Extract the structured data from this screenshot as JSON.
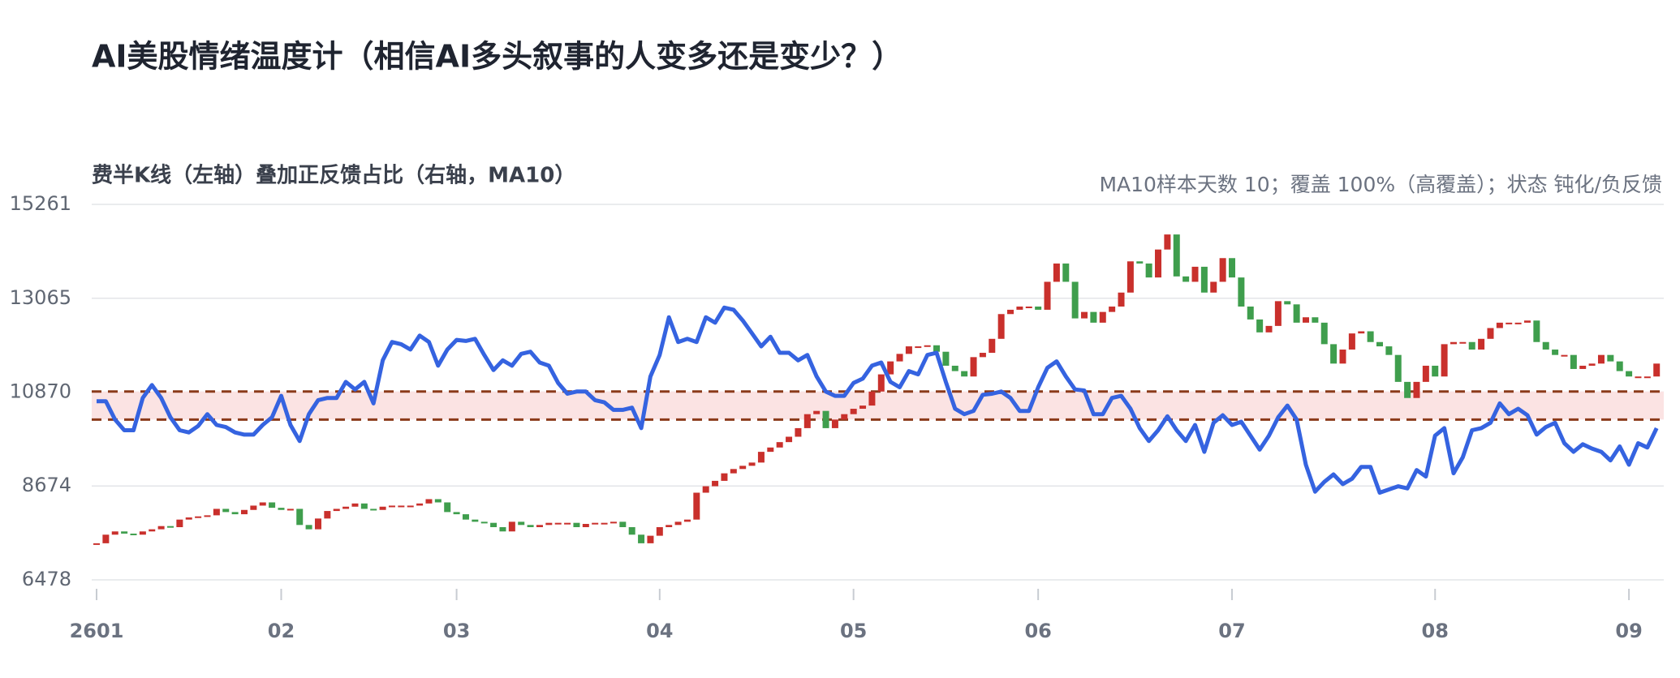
{
  "chart_data": {
    "type": "candlestick",
    "title": "AI美股情绪温度计（相信AI多头叙事的人变多还是变少？）",
    "subtitle": "费半K线（左轴）叠加正反馈占比（右轴，MA10）",
    "note": "MA10样本天数 10；覆盖 100%（高覆盖）；状态 钝化/负反馈",
    "ylim": [
      6478,
      15261
    ],
    "yticks": [
      6478,
      8674,
      10870,
      13065,
      15261
    ],
    "grid": true,
    "xticks": [
      {
        "value": 0,
        "label": "2601"
      },
      {
        "value": 20,
        "label": "02"
      },
      {
        "value": 39,
        "label": "03"
      },
      {
        "value": 61,
        "label": "04"
      },
      {
        "value": 82,
        "label": "05"
      },
      {
        "value": 102,
        "label": "06"
      },
      {
        "value": 123,
        "label": "07"
      },
      {
        "value": 145,
        "label": "08"
      },
      {
        "value": 166,
        "label": "09"
      }
    ],
    "band": [
      10228,
      10883
    ],
    "band_color": "#fbe3e3",
    "band_line_color": "#8b3a1a",
    "up_color": "#c9302c",
    "down_color": "#3f9e4d",
    "series": [
      {
        "type": "candlestick",
        "open": [
          7300,
          7334,
          7535,
          7611,
          7560,
          7535,
          7611,
          7661,
          7736,
          7711,
          7888,
          7938,
          7963,
          7988,
          8139,
          8064,
          8013,
          8114,
          8215,
          8290,
          8164,
          8114,
          8139,
          7762,
          7661,
          7913,
          8089,
          8139,
          8190,
          8265,
          8139,
          8114,
          8190,
          8215,
          8215,
          8215,
          8265,
          8366,
          8290,
          8064,
          8013,
          7888,
          7837,
          7812,
          7711,
          7611,
          7837,
          7762,
          7711,
          7762,
          7812,
          7812,
          7812,
          7711,
          7787,
          7812,
          7812,
          7837,
          7711,
          7535,
          7334,
          7510,
          7711,
          7762,
          7837,
          7888,
          8517,
          8668,
          8794,
          8970,
          9071,
          9146,
          9222,
          9473,
          9574,
          9700,
          9826,
          10027,
          10354,
          10430,
          10027,
          10228,
          10354,
          10480,
          10555,
          10883,
          11285,
          11588,
          11764,
          11940,
          11940,
          11965,
          11814,
          11487,
          11361,
          11235,
          11688,
          11789,
          12116,
          12695,
          12796,
          12871,
          12871,
          12796,
          13450,
          13878,
          13450,
          12594,
          12745,
          12494,
          12745,
          12871,
          13198,
          13928,
          13878,
          13551,
          14205,
          14557,
          13576,
          13450,
          13802,
          13198,
          13450,
          14004,
          13551,
          12871,
          12569,
          12267,
          12418,
          12997,
          12922,
          12494,
          12620,
          12494,
          11991,
          11537,
          11865,
          12242,
          12292,
          12041,
          11940,
          11739,
          11109,
          10732,
          11109,
          11487,
          11235,
          11991,
          12041,
          12041,
          11865,
          12116,
          12368,
          12494,
          12494,
          12494,
          12544,
          12041,
          11865,
          11739,
          11739,
          11411,
          11487,
          11537,
          11739,
          11588,
          11361,
          11235,
          11235,
          11235
        ],
        "close": [
          7334,
          7535,
          7611,
          7560,
          7535,
          7611,
          7661,
          7736,
          7711,
          7888,
          7938,
          7963,
          7988,
          8139,
          8064,
          8013,
          8114,
          8215,
          8290,
          8164,
          8114,
          8139,
          7762,
          7661,
          7913,
          8089,
          8139,
          8190,
          8265,
          8139,
          8114,
          8190,
          8215,
          8215,
          8215,
          8265,
          8366,
          8290,
          8064,
          8013,
          7888,
          7837,
          7812,
          7711,
          7611,
          7837,
          7762,
          7711,
          7762,
          7812,
          7812,
          7812,
          7711,
          7787,
          7812,
          7812,
          7837,
          7711,
          7535,
          7334,
          7510,
          7711,
          7762,
          7837,
          7888,
          8517,
          8668,
          8794,
          8970,
          9071,
          9146,
          9222,
          9473,
          9574,
          9700,
          9826,
          10027,
          10354,
          10430,
          10027,
          10228,
          10354,
          10480,
          10555,
          10883,
          11285,
          11588,
          11764,
          11940,
          11940,
          11965,
          11814,
          11487,
          11361,
          11235,
          11688,
          11789,
          12116,
          12695,
          12796,
          12871,
          12871,
          12796,
          13450,
          13878,
          13450,
          12594,
          12745,
          12494,
          12745,
          12871,
          13198,
          13928,
          13878,
          13551,
          14205,
          14557,
          13576,
          13450,
          13802,
          13198,
          13450,
          14004,
          13551,
          12871,
          12569,
          12267,
          12418,
          12997,
          12922,
          12494,
          12620,
          12494,
          11991,
          11537,
          11865,
          12242,
          12292,
          12041,
          11940,
          11739,
          11109,
          10732,
          11109,
          11487,
          11235,
          11991,
          12041,
          12041,
          11865,
          12116,
          12368,
          12494,
          12494,
          12494,
          12544,
          12041,
          11865,
          11739,
          11739,
          11411,
          11487,
          11537,
          11739,
          11588,
          11361,
          11235,
          11235,
          11235,
          11537
        ]
      },
      {
        "type": "line",
        "color": "#3563e0",
        "values": [
          10656,
          10656,
          10228,
          9977,
          9977,
          10732,
          11034,
          10732,
          10279,
          9977,
          9926,
          10077,
          10354,
          10102,
          10052,
          9926,
          9876,
          9876,
          10102,
          10279,
          10782,
          10102,
          9725,
          10354,
          10681,
          10732,
          10732,
          11109,
          10933,
          11109,
          10606,
          11613,
          12041,
          11991,
          11865,
          12192,
          12041,
          11487,
          11865,
          12091,
          12066,
          12116,
          11739,
          11386,
          11613,
          11487,
          11764,
          11814,
          11562,
          11487,
          11084,
          10832,
          10883,
          10883,
          10681,
          10631,
          10455,
          10455,
          10505,
          10027,
          11235,
          11739,
          12620,
          12041,
          12116,
          12041,
          12620,
          12494,
          12846,
          12796,
          12544,
          12242,
          11940,
          12166,
          11789,
          11789,
          11613,
          11739,
          11235,
          10883,
          10782,
          10782,
          11084,
          11185,
          11487,
          11562,
          11109,
          10984,
          11361,
          11285,
          11739,
          11789,
          11109,
          10480,
          10354,
          10430,
          10807,
          10832,
          10883,
          10732,
          10430,
          10430,
          10984,
          11437,
          11588,
          11235,
          10933,
          10908,
          10354,
          10354,
          10732,
          10782,
          10480,
          10027,
          9725,
          9977,
          10304,
          9977,
          9725,
          10102,
          9473,
          10153,
          10329,
          10102,
          10178,
          9851,
          9524,
          9851,
          10279,
          10555,
          10228,
          9171,
          8542,
          8769,
          8945,
          8718,
          8844,
          9121,
          9121,
          8517,
          8593,
          8668,
          8618,
          9046,
          8894,
          9851,
          10027,
          8970,
          9348,
          9977,
          10027,
          10153,
          10606,
          10354,
          10480,
          10329,
          9876,
          10052,
          10153,
          9675,
          9473,
          9650,
          9549,
          9473,
          9272,
          9599,
          9171,
          9675,
          9574,
          10027
        ]
      }
    ]
  }
}
